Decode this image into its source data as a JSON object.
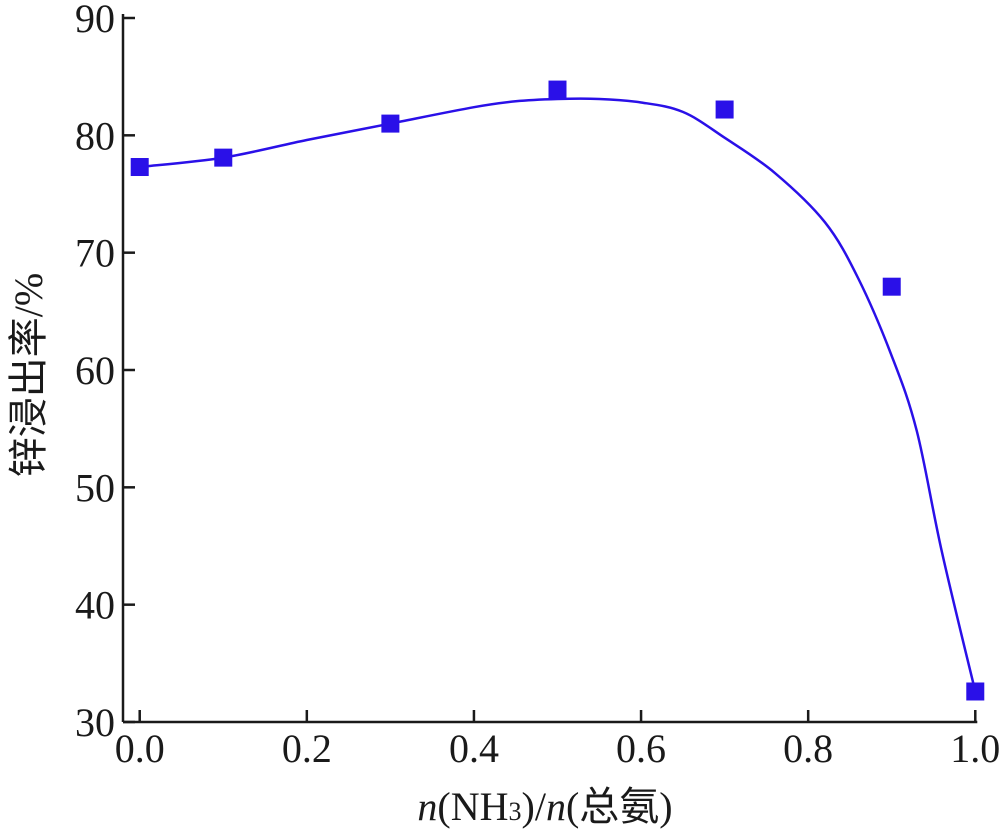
{
  "chart_data": {
    "type": "scatter",
    "title": "",
    "xlabel": "n(NH₃)/n(总氨)",
    "xlabel_parts": {
      "n1": "n",
      "open1": "(NH",
      "sub": "3",
      "close1": ")/",
      "n2": "n",
      "rest": "(总氨)"
    },
    "ylabel": "锌浸出率/%",
    "xlim": [
      -0.02,
      1.02
    ],
    "ylim": [
      30,
      90
    ],
    "x_ticks": [
      0.0,
      0.2,
      0.4,
      0.6,
      0.8,
      1.0
    ],
    "x_tick_labels": [
      "0.0",
      "0.2",
      "0.4",
      "0.6",
      "0.8",
      "1.0"
    ],
    "y_ticks": [
      30,
      40,
      50,
      60,
      70,
      80,
      90
    ],
    "y_tick_labels": [
      "30",
      "40",
      "50",
      "60",
      "70",
      "80",
      "90"
    ],
    "grid": false,
    "legend": "none",
    "colors": {
      "series": "#2a10e8",
      "axis": "#1a1a1a"
    },
    "series": [
      {
        "kind": "points",
        "x": [
          0.0,
          0.1,
          0.3,
          0.5,
          0.7,
          0.9,
          1.0
        ],
        "y": [
          77.3,
          78.1,
          81.0,
          83.9,
          82.2,
          67.1,
          32.6
        ]
      },
      {
        "kind": "fit-curve",
        "x": [
          0.0,
          0.1,
          0.2,
          0.3,
          0.4,
          0.45,
          0.5,
          0.55,
          0.6,
          0.65,
          0.7,
          0.76,
          0.82,
          0.86,
          0.9,
          0.93,
          0.96,
          1.0
        ],
        "y": [
          77.3,
          78.1,
          79.6,
          81.0,
          82.4,
          82.9,
          83.1,
          83.1,
          82.8,
          82.0,
          79.8,
          76.8,
          72.6,
          67.8,
          61.2,
          54.8,
          44.5,
          32.6
        ]
      }
    ]
  }
}
